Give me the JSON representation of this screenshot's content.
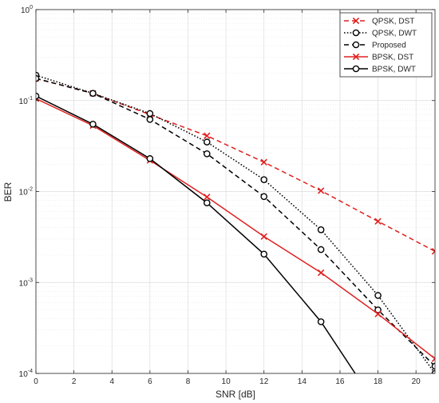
{
  "chart_data": {
    "type": "line",
    "title": "",
    "xlabel": "SNR [dB]",
    "ylabel": "BER",
    "xlim": [
      0,
      21
    ],
    "ylim": [
      0.0001,
      1
    ],
    "yscale": "log",
    "grid": true,
    "minor_grid": true,
    "legend_position": "top-right",
    "x_ticks": [
      0,
      2,
      4,
      6,
      8,
      10,
      12,
      14,
      16,
      18,
      20
    ],
    "x_tick_labels": [
      "0",
      "2",
      "4",
      "6",
      "8",
      "10",
      "12",
      "14",
      "16",
      "18",
      "20"
    ],
    "y_ticks": [
      0.0001,
      0.001,
      0.01,
      0.1,
      1
    ],
    "y_tick_labels": [
      {
        "base": "10",
        "exp": "-4"
      },
      {
        "base": "10",
        "exp": "-3"
      },
      {
        "base": "10",
        "exp": "-2"
      },
      {
        "base": "10",
        "exp": "-1"
      },
      {
        "base": "10",
        "exp": "0"
      }
    ],
    "series": [
      {
        "name": "QPSK, DST",
        "color": "#e02020",
        "dash": "dashed",
        "marker": "x",
        "x": [
          0,
          3,
          6,
          9,
          12,
          15,
          18,
          21
        ],
        "y": [
          0.175,
          0.12,
          0.07,
          0.041,
          0.021,
          0.0102,
          0.0047,
          0.0022
        ]
      },
      {
        "name": "QPSK, DWT",
        "color": "#000000",
        "dash": "dotted",
        "marker": "o",
        "x": [
          0,
          3,
          6,
          9,
          12,
          15,
          18,
          21
        ],
        "y": [
          0.19,
          0.12,
          0.072,
          0.035,
          0.0135,
          0.0038,
          0.00072,
          0.0001
        ]
      },
      {
        "name": "Proposed",
        "color": "#000000",
        "dash": "dashed",
        "marker": "o",
        "x": [
          0,
          3,
          6,
          9,
          12,
          15,
          18,
          21
        ],
        "y": [
          0.175,
          0.12,
          0.062,
          0.026,
          0.0088,
          0.0023,
          0.0005,
          0.00012
        ]
      },
      {
        "name": "BPSK, DST",
        "color": "#e02020",
        "dash": "solid",
        "marker": "x",
        "x": [
          0,
          3,
          6,
          9,
          12,
          15,
          18,
          21
        ],
        "y": [
          0.105,
          0.053,
          0.022,
          0.0087,
          0.0032,
          0.00128,
          0.00045,
          0.000145
        ]
      },
      {
        "name": "BPSK, DWT",
        "color": "#000000",
        "dash": "solid",
        "marker": "o",
        "x": [
          0,
          3,
          6,
          9,
          12,
          15,
          16.8
        ],
        "y": [
          0.112,
          0.055,
          0.023,
          0.0075,
          0.00205,
          0.00037,
          0.0001
        ],
        "marker_points": 6
      }
    ]
  }
}
